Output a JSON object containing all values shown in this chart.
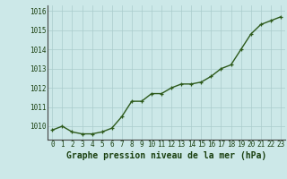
{
  "x": [
    0,
    1,
    2,
    3,
    4,
    5,
    6,
    7,
    8,
    9,
    10,
    11,
    12,
    13,
    14,
    15,
    16,
    17,
    18,
    19,
    20,
    21,
    22,
    23
  ],
  "y": [
    1009.8,
    1010.0,
    1009.7,
    1009.6,
    1009.6,
    1009.7,
    1009.9,
    1010.5,
    1011.3,
    1011.3,
    1011.7,
    1011.7,
    1012.0,
    1012.2,
    1012.2,
    1012.3,
    1012.6,
    1013.0,
    1013.2,
    1014.0,
    1014.8,
    1015.3,
    1015.5,
    1015.7
  ],
  "line_color": "#2d5a1b",
  "marker": "+",
  "bg_color": "#cce8e8",
  "grid_color": "#aacccc",
  "xlabel": "Graphe pression niveau de la mer (hPa)",
  "xlabel_color": "#1a4010",
  "ylim_min": 1009.3,
  "ylim_max": 1016.3,
  "xticks": [
    0,
    1,
    2,
    3,
    4,
    5,
    6,
    7,
    8,
    9,
    10,
    11,
    12,
    13,
    14,
    15,
    16,
    17,
    18,
    19,
    20,
    21,
    22,
    23
  ],
  "yticks": [
    1010,
    1011,
    1012,
    1013,
    1014,
    1015,
    1016
  ],
  "tick_color": "#1a4010",
  "axis_color": "#555555",
  "tick_fontsize": 5.5,
  "xlabel_fontsize": 7.0,
  "linewidth": 1.0,
  "markersize": 3.5,
  "markeredgewidth": 0.9
}
